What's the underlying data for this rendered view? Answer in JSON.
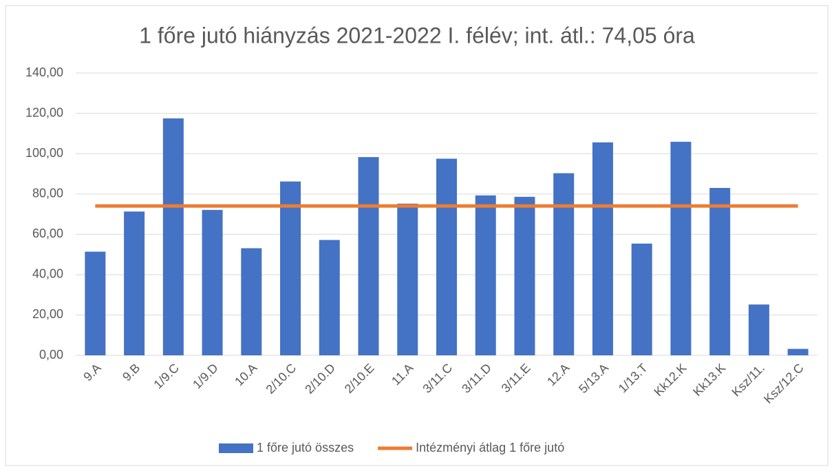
{
  "chart_data": {
    "type": "bar",
    "title": "1 főre jutó hiányzás 2021-2022 I. félév; int. átl.: 74,05 óra",
    "categories": [
      "9.A",
      "9.B",
      "1/9.C",
      "1/9.D",
      "10.A",
      "2/10.C",
      "2/10.D",
      "2/10.E",
      "11.A",
      "3/11.C",
      "3/11.D",
      "3/11.E",
      "12.A",
      "5/13.A",
      "1/13.T",
      "Kk12.K",
      "Kk13.K",
      "Ksz/11.",
      "Ksz/12.C"
    ],
    "series": [
      {
        "name": "1 főre jutó összes",
        "type": "bar",
        "color": "#4472c4",
        "values": [
          51.4,
          71.3,
          117.5,
          72.1,
          53.1,
          86.2,
          57.2,
          98.3,
          75.2,
          97.5,
          79.3,
          78.6,
          90.3,
          105.6,
          55.4,
          105.9,
          83.0,
          25.2,
          3.2
        ]
      },
      {
        "name": "Intézményi átlag 1 főre jutó",
        "type": "line",
        "color": "#ed7d31",
        "values": [
          74.05,
          74.05,
          74.05,
          74.05,
          74.05,
          74.05,
          74.05,
          74.05,
          74.05,
          74.05,
          74.05,
          74.05,
          74.05,
          74.05,
          74.05,
          74.05,
          74.05,
          74.05,
          74.05
        ]
      }
    ],
    "ylim": [
      0,
      140
    ],
    "yticks": [
      {
        "value": 0,
        "label": "0,00"
      },
      {
        "value": 20,
        "label": "20,00"
      },
      {
        "value": 40,
        "label": "40,00"
      },
      {
        "value": 60,
        "label": "60,00"
      },
      {
        "value": 80,
        "label": "80,00"
      },
      {
        "value": 100,
        "label": "100,00"
      },
      {
        "value": 120,
        "label": "120,00"
      },
      {
        "value": 140,
        "label": "140,00"
      }
    ],
    "grid": true,
    "legend": "bottom"
  }
}
